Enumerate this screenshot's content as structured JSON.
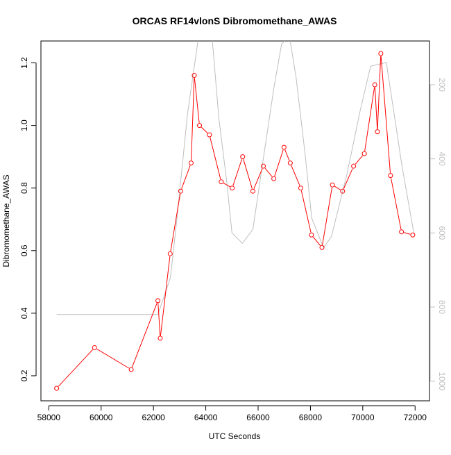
{
  "chart_data": {
    "type": "line",
    "title": "ORCAS RF14vlonS Dibromomethane_AWAS",
    "xlabel": "UTC Seconds",
    "ylabel": "Dibromomethane_AWAS",
    "xlim": [
      57700,
      72550
    ],
    "ylim": [
      0.12,
      1.27
    ],
    "x_ticks": [
      58000,
      60000,
      62000,
      64000,
      66000,
      68000,
      70000,
      72000
    ],
    "y_ticks": [
      0.2,
      0.4,
      0.6,
      0.8,
      1.0,
      1.2
    ],
    "y_tick_labels": [
      "0.2",
      "0.4",
      "0.6",
      "0.8",
      "1.0",
      "1.2"
    ],
    "secondary_axis": {
      "side": "right",
      "reversed": true,
      "ticks": [
        200,
        400,
        600,
        800,
        1000
      ],
      "range": [
        82,
        1053
      ],
      "color": "#bebebe"
    },
    "grid": false,
    "legend": "none",
    "series": [
      {
        "color": "#ff0000",
        "style": "line+open-circles",
        "points": [
          [
            58300,
            0.16
          ],
          [
            59750,
            0.29
          ],
          [
            61150,
            0.22
          ],
          [
            62170,
            0.44
          ],
          [
            62260,
            0.32
          ],
          [
            62640,
            0.59
          ],
          [
            63040,
            0.79
          ],
          [
            63440,
            0.88
          ],
          [
            63560,
            1.16
          ],
          [
            63760,
            1.0
          ],
          [
            64140,
            0.97
          ],
          [
            64590,
            0.82
          ],
          [
            65010,
            0.8
          ],
          [
            65410,
            0.9
          ],
          [
            65800,
            0.79
          ],
          [
            66200,
            0.87
          ],
          [
            66600,
            0.83
          ],
          [
            66990,
            0.93
          ],
          [
            67230,
            0.88
          ],
          [
            67630,
            0.8
          ],
          [
            68040,
            0.65
          ],
          [
            68440,
            0.61
          ],
          [
            68840,
            0.81
          ],
          [
            69230,
            0.79
          ],
          [
            69650,
            0.87
          ],
          [
            70060,
            0.91
          ],
          [
            70460,
            1.13
          ],
          [
            70560,
            0.98
          ],
          [
            70690,
            1.23
          ],
          [
            71060,
            0.84
          ],
          [
            71480,
            0.66
          ],
          [
            71910,
            0.65
          ]
        ]
      },
      {
        "color": "#bebebe",
        "style": "line",
        "axis": "right",
        "points": [
          [
            58300,
            820
          ],
          [
            62170,
            820
          ],
          [
            62650,
            720
          ],
          [
            62900,
            560
          ],
          [
            63100,
            420
          ],
          [
            63300,
            280
          ],
          [
            63500,
            180
          ],
          [
            63750,
            60
          ],
          [
            64250,
            80
          ],
          [
            64500,
            290
          ],
          [
            64800,
            460
          ],
          [
            65000,
            600
          ],
          [
            65400,
            628
          ],
          [
            65800,
            590
          ],
          [
            66200,
            400
          ],
          [
            66600,
            210
          ],
          [
            66900,
            90
          ],
          [
            67200,
            70
          ],
          [
            67450,
            180
          ],
          [
            67800,
            390
          ],
          [
            68050,
            560
          ],
          [
            68500,
            640
          ],
          [
            68800,
            610
          ],
          [
            69400,
            440
          ],
          [
            69900,
            270
          ],
          [
            70300,
            150
          ],
          [
            70900,
            140
          ],
          [
            71200,
            280
          ],
          [
            71500,
            420
          ],
          [
            71950,
            600
          ]
        ]
      }
    ]
  }
}
